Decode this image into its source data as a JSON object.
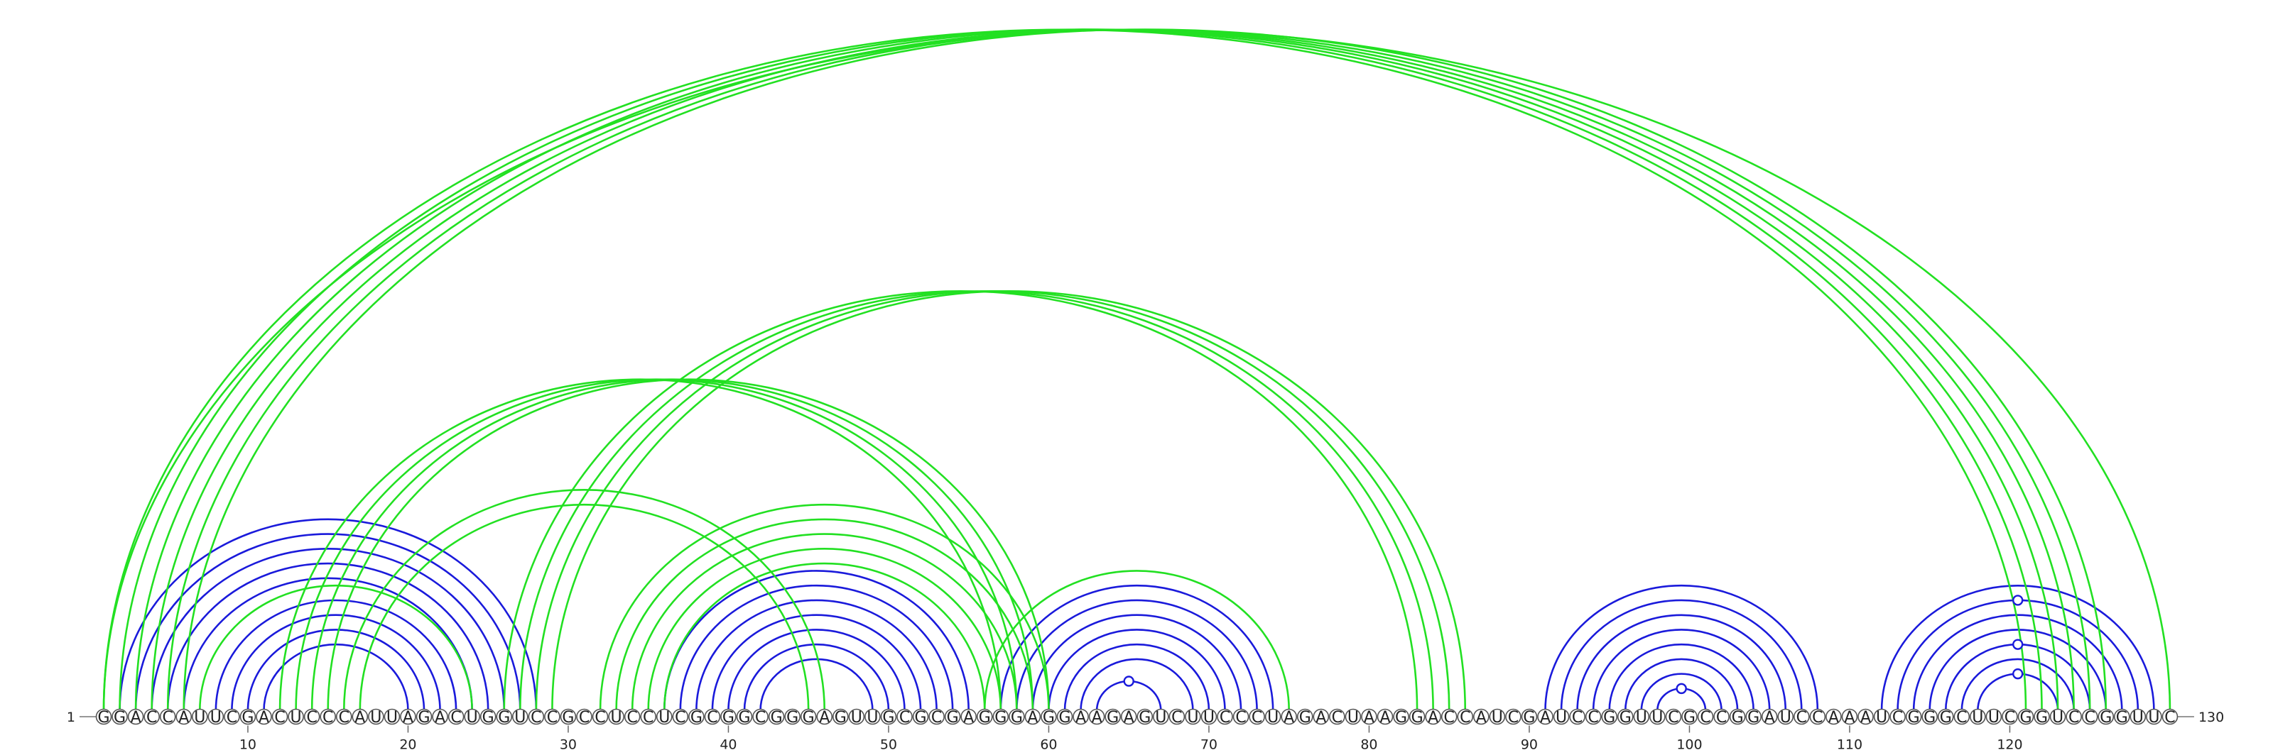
{
  "sequence": "GGACCAUUCGACUCCCAUUAGACUGGUCCGCCUCCUCGCGGCGGGAGUUGCGCGAGGGAGGAAGAGUCUUCCCUAGACUAAGGACCAUCGAUCCGGUUCGCCGGAUCCAAAUCGGGCUUCGGUCCGGUUC",
  "start_label": "1",
  "end_label": "130",
  "position_labels": [
    {
      "pos": 10,
      "text": "10"
    },
    {
      "pos": 20,
      "text": "20"
    },
    {
      "pos": 30,
      "text": "30"
    },
    {
      "pos": 40,
      "text": "40"
    },
    {
      "pos": 50,
      "text": "50"
    },
    {
      "pos": 60,
      "text": "60"
    },
    {
      "pos": 70,
      "text": "70"
    },
    {
      "pos": 80,
      "text": "80"
    },
    {
      "pos": 90,
      "text": "90"
    },
    {
      "pos": 100,
      "text": "100"
    },
    {
      "pos": 110,
      "text": "110"
    },
    {
      "pos": 120,
      "text": "120"
    }
  ],
  "colors": {
    "blue": "#1a1adb",
    "green": "#22e022"
  },
  "pairs": [
    {
      "i": 2,
      "j": 28,
      "color": "blue"
    },
    {
      "i": 3,
      "j": 27,
      "color": "blue"
    },
    {
      "i": 4,
      "j": 26,
      "color": "blue"
    },
    {
      "i": 5,
      "j": 25,
      "color": "blue"
    },
    {
      "i": 6,
      "j": 24,
      "color": "blue"
    },
    {
      "i": 8,
      "j": 23,
      "color": "blue"
    },
    {
      "i": 9,
      "j": 22,
      "color": "blue"
    },
    {
      "i": 10,
      "j": 21,
      "color": "blue"
    },
    {
      "i": 11,
      "j": 20,
      "color": "blue"
    },
    {
      "i": 7,
      "j": 24,
      "color": "green"
    },
    {
      "i": 36,
      "j": 55,
      "color": "blue"
    },
    {
      "i": 37,
      "j": 54,
      "color": "blue"
    },
    {
      "i": 38,
      "j": 53,
      "color": "blue"
    },
    {
      "i": 39,
      "j": 52,
      "color": "blue"
    },
    {
      "i": 40,
      "j": 51,
      "color": "blue"
    },
    {
      "i": 41,
      "j": 50,
      "color": "blue"
    },
    {
      "i": 42,
      "j": 49,
      "color": "blue"
    },
    {
      "i": 57,
      "j": 74,
      "color": "blue"
    },
    {
      "i": 58,
      "j": 73,
      "color": "blue"
    },
    {
      "i": 59,
      "j": 72,
      "color": "blue"
    },
    {
      "i": 60,
      "j": 71,
      "color": "blue"
    },
    {
      "i": 61,
      "j": 70,
      "color": "blue"
    },
    {
      "i": 62,
      "j": 69,
      "color": "blue"
    },
    {
      "i": 63,
      "j": 67,
      "color": "blue"
    },
    {
      "i": 56,
      "j": 75,
      "color": "green"
    },
    {
      "i": 91,
      "j": 108,
      "color": "blue"
    },
    {
      "i": 92,
      "j": 107,
      "color": "blue"
    },
    {
      "i": 93,
      "j": 106,
      "color": "blue"
    },
    {
      "i": 94,
      "j": 105,
      "color": "blue"
    },
    {
      "i": 95,
      "j": 104,
      "color": "blue"
    },
    {
      "i": 96,
      "j": 103,
      "color": "blue"
    },
    {
      "i": 97,
      "j": 102,
      "color": "blue"
    },
    {
      "i": 98,
      "j": 101,
      "color": "blue"
    },
    {
      "i": 112,
      "j": 129,
      "color": "blue"
    },
    {
      "i": 113,
      "j": 128,
      "color": "blue"
    },
    {
      "i": 114,
      "j": 127,
      "color": "blue"
    },
    {
      "i": 115,
      "j": 126,
      "color": "blue"
    },
    {
      "i": 116,
      "j": 125,
      "color": "blue"
    },
    {
      "i": 117,
      "j": 124,
      "color": "blue"
    },
    {
      "i": 118,
      "j": 123,
      "color": "blue"
    },
    {
      "i": 1,
      "j": 121,
      "color": "green"
    },
    {
      "i": 2,
      "j": 122,
      "color": "green"
    },
    {
      "i": 3,
      "j": 123,
      "color": "green"
    },
    {
      "i": 4,
      "j": 124,
      "color": "green"
    },
    {
      "i": 5,
      "j": 125,
      "color": "green"
    },
    {
      "i": 6,
      "j": 126,
      "color": "green"
    },
    {
      "i": 1,
      "j": 130,
      "color": "green"
    },
    {
      "i": 26,
      "j": 83,
      "color": "green"
    },
    {
      "i": 27,
      "j": 84,
      "color": "green"
    },
    {
      "i": 28,
      "j": 85,
      "color": "green"
    },
    {
      "i": 29,
      "j": 86,
      "color": "green"
    },
    {
      "i": 12,
      "j": 57,
      "color": "green"
    },
    {
      "i": 13,
      "j": 58,
      "color": "green"
    },
    {
      "i": 14,
      "j": 59,
      "color": "green"
    },
    {
      "i": 15,
      "j": 60,
      "color": "green"
    },
    {
      "i": 16,
      "j": 46,
      "color": "green"
    },
    {
      "i": 17,
      "j": 45,
      "color": "green"
    },
    {
      "i": 32,
      "j": 60,
      "color": "green"
    },
    {
      "i": 33,
      "j": 59,
      "color": "green"
    },
    {
      "i": 34,
      "j": 58,
      "color": "green"
    },
    {
      "i": 35,
      "j": 57,
      "color": "green"
    },
    {
      "i": 36,
      "j": 56,
      "color": "green"
    }
  ],
  "unpaired_markers": [
    {
      "between_i": 63,
      "between_j": 67,
      "color": "blue"
    },
    {
      "between_i": 98,
      "between_j": 101,
      "color": "blue"
    },
    {
      "between_i": 118,
      "between_j": 123,
      "color": "blue"
    },
    {
      "between_i": 116,
      "between_j": 125,
      "color": "blue"
    },
    {
      "between_i": 113,
      "between_j": 128,
      "color": "blue"
    }
  ]
}
